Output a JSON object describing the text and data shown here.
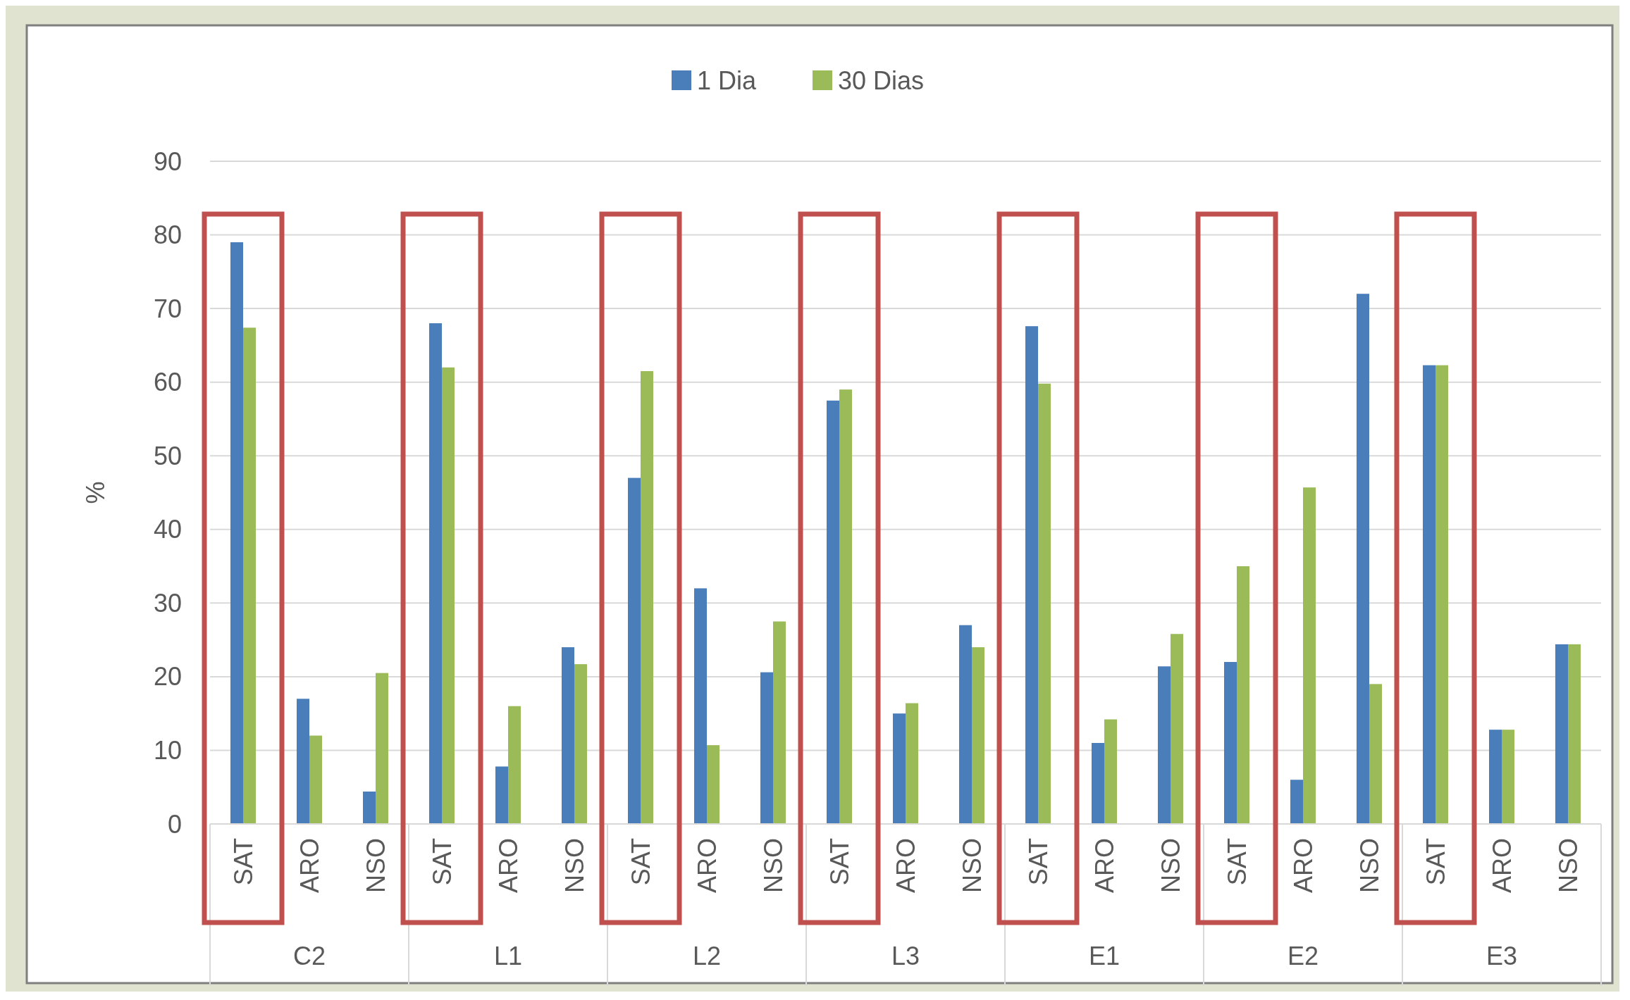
{
  "chart_data": {
    "type": "bar",
    "ylabel": "%",
    "categories": [
      "SAT",
      "ARO",
      "NSO",
      "SAT",
      "ARO",
      "NSO",
      "SAT",
      "ARO",
      "NSO",
      "SAT",
      "ARO",
      "NSO",
      "SAT",
      "ARO",
      "NSO",
      "SAT",
      "ARO",
      "NSO",
      "SAT",
      "ARO",
      "NSO"
    ],
    "annotations": [
      "C2",
      "L1",
      "L2",
      "L3",
      "E1",
      "E2",
      "E3"
    ],
    "series": [
      {
        "name": "1 Dia",
        "color": "#4a7ebb",
        "values": [
          79,
          17,
          4.4,
          68,
          7.8,
          24,
          47,
          32,
          20.6,
          57.5,
          15,
          27,
          67.6,
          11,
          21.4,
          22,
          6,
          72,
          62.3,
          12.8,
          24.4
        ]
      },
      {
        "name": "30 Dias",
        "color": "#9bbb59",
        "values": [
          67.4,
          12,
          20.5,
          62,
          16,
          21.7,
          61.5,
          10.7,
          27.5,
          59,
          16.4,
          24,
          59.8,
          14.2,
          25.8,
          35,
          45.7,
          19,
          62.3,
          12.8,
          24.4
        ]
      }
    ],
    "ylim": [
      0,
      90
    ],
    "yticks": [
      0,
      10,
      20,
      30,
      40,
      50,
      60,
      70,
      80,
      90
    ],
    "grid": true,
    "legend": "top"
  }
}
